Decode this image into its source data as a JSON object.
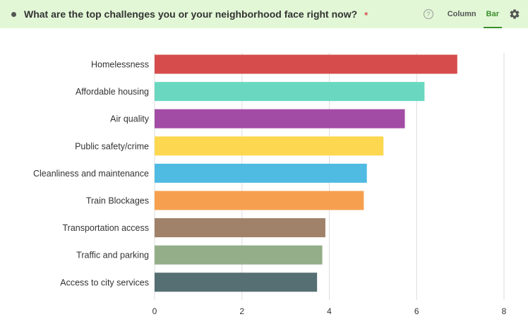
{
  "question": {
    "text": "What are the top challenges you or your neighborhood face right now?",
    "required_mark": "*"
  },
  "header": {
    "help_glyph": "?",
    "tabs": [
      {
        "label": "Column",
        "active": false
      },
      {
        "label": "Bar",
        "active": true
      }
    ],
    "settings_icon": "gear-icon",
    "help_icon": "question-circle-icon",
    "background_color": "#e2f7d6",
    "accent_color": "#3b8f2f"
  },
  "chart_data": {
    "type": "bar",
    "orientation": "horizontal",
    "categories": [
      "Homelessness",
      "Affordable housing",
      "Air quality",
      "Public safety/crime",
      "Cleanliness and maintenance",
      "Train Blockages",
      "Transportation access",
      "Traffic and parking",
      "Access to city services"
    ],
    "values": [
      6.93,
      6.18,
      5.73,
      5.24,
      4.86,
      4.79,
      3.91,
      3.84,
      3.72
    ],
    "colors": [
      "#d64b4b",
      "#6ad8c0",
      "#a34ca5",
      "#fdd74f",
      "#4fbbe3",
      "#f6a04f",
      "#a08169",
      "#93ae89",
      "#556f73"
    ],
    "xlim": [
      0,
      8
    ],
    "xticks": [
      "0",
      "2",
      "4",
      "6",
      "8"
    ],
    "grid": true,
    "title": "",
    "xlabel": "",
    "ylabel": ""
  }
}
